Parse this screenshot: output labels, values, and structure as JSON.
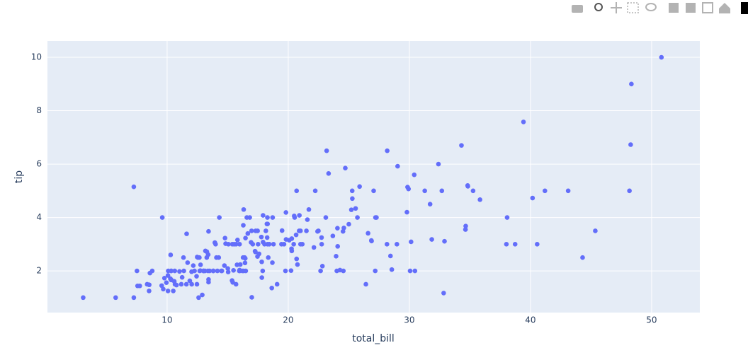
{
  "chart_data": {
    "type": "scatter",
    "x_label": "total_bill",
    "y_label": "tip",
    "color": "#636efa",
    "grid": true,
    "xlim": [
      0.12,
      53.98
    ],
    "xticks": [
      10,
      20,
      30,
      40,
      50
    ],
    "ylim": [
      0.44,
      10.61
    ],
    "yticks": [
      2,
      4,
      6,
      8,
      10
    ],
    "x": [
      16.99,
      10.34,
      21.01,
      23.68,
      24.59,
      25.29,
      8.77,
      26.88,
      15.04,
      14.78,
      10.27,
      35.26,
      15.42,
      18.43,
      14.83,
      21.58,
      10.33,
      16.29,
      16.97,
      20.65,
      17.92,
      20.29,
      15.77,
      39.42,
      19.82,
      17.81,
      13.37,
      12.69,
      21.7,
      19.65,
      9.55,
      18.35,
      15.06,
      20.69,
      17.78,
      24.06,
      16.31,
      16.93,
      18.69,
      31.27,
      16.04,
      17.46,
      13.94,
      9.68,
      30.4,
      18.29,
      22.23,
      32.4,
      28.55,
      18.04,
      12.54,
      10.29,
      34.81,
      9.94,
      25.56,
      19.49,
      38.01,
      26.41,
      11.24,
      48.27,
      20.29,
      13.81,
      11.02,
      18.29,
      17.59,
      20.08,
      16.45,
      3.07,
      20.23,
      15.01,
      12.02,
      17.07,
      26.86,
      25.28,
      14.73,
      10.51,
      17.92,
      27.2,
      22.76,
      17.29,
      19.44,
      16.66,
      10.07,
      32.68,
      15.98,
      34.83,
      13.03,
      18.28,
      24.71,
      21.16,
      28.97,
      22.49,
      5.75,
      16.32,
      22.75,
      40.17,
      27.28,
      12.03,
      21.01,
      12.46,
      11.35,
      15.38,
      44.3,
      22.42,
      20.92,
      15.36,
      20.49,
      25.21,
      18.24,
      14.31,
      14.0,
      7.25,
      38.07,
      23.95,
      25.71,
      17.31,
      29.93,
      10.65,
      12.43,
      24.08,
      11.69,
      13.42,
      14.26,
      15.95,
      12.48,
      29.8,
      8.52,
      14.52,
      11.38,
      22.82,
      19.08,
      20.27,
      11.17,
      12.26,
      18.26,
      8.51,
      10.33,
      14.15,
      16.0,
      13.16,
      17.47,
      34.3,
      41.19,
      27.05,
      16.43,
      8.35,
      18.64,
      11.87,
      9.78,
      7.51,
      14.07,
      13.13,
      17.26,
      24.55,
      19.77,
      29.85,
      48.17,
      25.0,
      13.39,
      16.49,
      21.5,
      12.66,
      16.21,
      13.81,
      17.51,
      24.52,
      20.76,
      31.71,
      10.59,
      10.63,
      50.81,
      15.81,
      7.25,
      31.85,
      16.82,
      32.9,
      17.89,
      14.48,
      9.6,
      34.63,
      34.65,
      23.33,
      45.35,
      23.17,
      40.55,
      20.69,
      20.9,
      30.46,
      18.15,
      23.1,
      15.69,
      19.81,
      28.44,
      15.48,
      16.58,
      7.56,
      10.34,
      43.11,
      13.0,
      13.51,
      18.71,
      12.74,
      13.0,
      16.4,
      20.53,
      16.47,
      26.59,
      38.73,
      24.27,
      12.76,
      30.06,
      25.89,
      48.33,
      13.27,
      28.17,
      12.9,
      28.15,
      11.59,
      7.74,
      30.14,
      12.16,
      13.42,
      8.58,
      15.98,
      13.42,
      16.27,
      10.09,
      20.45,
      13.28,
      22.12,
      24.01,
      15.69,
      11.61,
      10.77,
      15.53,
      10.07,
      12.6,
      32.83,
      35.83,
      29.03,
      27.18,
      22.67,
      17.82,
      18.78
    ],
    "values": [
      1.01,
      1.66,
      3.5,
      3.31,
      3.61,
      4.71,
      2.0,
      3.12,
      1.96,
      3.23,
      1.71,
      5.0,
      1.57,
      3.0,
      3.02,
      3.92,
      1.67,
      3.71,
      3.5,
      3.35,
      4.08,
      2.75,
      2.23,
      7.58,
      3.18,
      2.34,
      2.0,
      2.0,
      4.3,
      3.0,
      1.45,
      2.5,
      3.0,
      2.45,
      3.27,
      3.6,
      2.0,
      3.07,
      2.31,
      5.0,
      2.24,
      2.54,
      3.06,
      1.32,
      5.6,
      3.0,
      5.0,
      6.0,
      2.05,
      3.0,
      2.5,
      2.6,
      5.2,
      1.56,
      4.34,
      3.51,
      3.0,
      1.5,
      1.76,
      6.73,
      3.21,
      2.0,
      1.98,
      3.76,
      2.64,
      3.15,
      2.47,
      1.0,
      2.01,
      2.09,
      1.97,
      3.0,
      3.14,
      5.0,
      2.2,
      1.25,
      3.08,
      4.0,
      3.0,
      2.71,
      3.0,
      3.4,
      1.83,
      5.0,
      2.03,
      5.17,
      2.0,
      4.0,
      5.85,
      3.0,
      3.0,
      3.5,
      1.0,
      4.3,
      3.25,
      4.73,
      4.0,
      1.5,
      3.0,
      1.5,
      2.5,
      3.0,
      2.5,
      3.48,
      4.08,
      1.64,
      4.06,
      4.29,
      3.76,
      4.0,
      3.0,
      1.0,
      4.0,
      2.55,
      4.0,
      3.5,
      5.07,
      1.5,
      1.8,
      2.92,
      2.31,
      1.68,
      2.5,
      2.0,
      2.52,
      4.2,
      1.48,
      2.0,
      2.0,
      2.18,
      1.5,
      2.83,
      1.5,
      2.0,
      3.25,
      1.25,
      2.0,
      2.0,
      2.0,
      2.75,
      3.5,
      6.7,
      5.0,
      5.0,
      2.3,
      1.5,
      1.36,
      1.63,
      1.73,
      2.0,
      2.5,
      2.0,
      2.74,
      2.0,
      2.0,
      5.14,
      5.0,
      3.75,
      2.61,
      2.0,
      3.5,
      2.5,
      2.0,
      2.0,
      3.0,
      3.48,
      2.24,
      4.5,
      1.61,
      2.0,
      10.0,
      3.16,
      5.15,
      3.18,
      4.0,
      3.11,
      2.0,
      2.0,
      4.0,
      3.55,
      3.68,
      5.65,
      3.5,
      6.5,
      3.0,
      5.0,
      3.5,
      2.0,
      3.5,
      4.0,
      1.5,
      4.19,
      2.56,
      2.02,
      4.0,
      1.44,
      2.0,
      5.0,
      2.0,
      2.0,
      4.0,
      2.01,
      2.0,
      2.5,
      4.0,
      3.23,
      3.41,
      3.0,
      2.03,
      2.23,
      2.0,
      5.16,
      9.0,
      2.5,
      6.5,
      1.1,
      3.0,
      1.5,
      1.44,
      3.09,
      2.2,
      3.48,
      1.92,
      3.0,
      1.58,
      2.5,
      2.0,
      3.0,
      2.72,
      2.88,
      2.0,
      3.0,
      3.39,
      1.47,
      3.0,
      1.25,
      1.0,
      1.17,
      4.67,
      5.92,
      2.0,
      2.0,
      1.75,
      3.0
    ]
  }
}
